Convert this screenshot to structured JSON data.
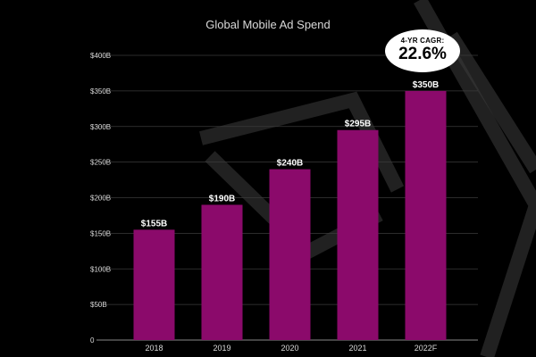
{
  "colors": {
    "background": "#000000",
    "bar": "#8b0a6b",
    "grid": "#3a3a3a",
    "axis": "#888888",
    "text": "#d9d9d9",
    "label": "#ffffff",
    "badge_bg": "#ffffff",
    "badge_text": "#000000",
    "watermark": "#3c3c3c"
  },
  "chart_data": {
    "type": "bar",
    "title": "Global Mobile Ad Spend",
    "xlabel": "",
    "ylabel": "",
    "categories": [
      "2018",
      "2019",
      "2020",
      "2021",
      "2022F"
    ],
    "values": [
      155,
      190,
      240,
      295,
      350
    ],
    "data_labels": [
      "$155B",
      "$190B",
      "$240B",
      "$295B",
      "$350B"
    ],
    "ylim": [
      0,
      400
    ],
    "y_ticks": [
      0,
      50,
      100,
      150,
      200,
      250,
      300,
      350,
      400
    ],
    "y_tick_labels": [
      "0",
      "$50B",
      "$100B",
      "$150B",
      "$200B",
      "$250B",
      "$300B",
      "$350B",
      "$400B"
    ],
    "grid": true,
    "annotation": {
      "label": "4-YR CAGR:",
      "value": "22.6%"
    }
  }
}
